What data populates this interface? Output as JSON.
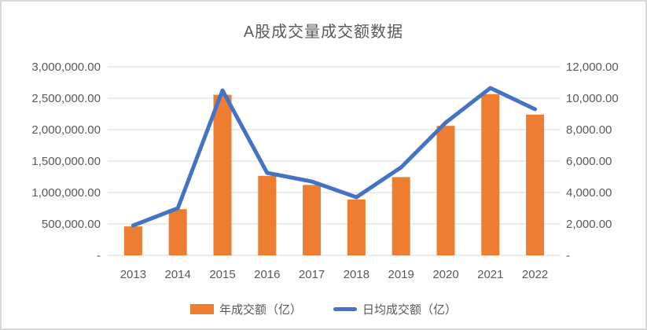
{
  "chart_data": {
    "type": "bar",
    "subtype": "combo-bar-line-dual-axis",
    "title": "A股成交量成交额数据",
    "categories": [
      "2013",
      "2014",
      "2015",
      "2016",
      "2017",
      "2018",
      "2019",
      "2020",
      "2021",
      "2022"
    ],
    "series": [
      {
        "name": "年成交额（亿）",
        "type": "bar",
        "axis": "left",
        "color": "#ED7D31",
        "values": [
          460000,
          735000,
          2555000,
          1265000,
          1120000,
          890000,
          1245000,
          2060000,
          2565000,
          2240000
        ]
      },
      {
        "name": "日均成交额（亿）",
        "type": "line",
        "axis": "right",
        "color": "#4472C4",
        "values": [
          1900,
          3000,
          10500,
          5250,
          4700,
          3700,
          5600,
          8450,
          10650,
          9300
        ]
      }
    ],
    "left_axis": {
      "min": 0,
      "max": 3000000,
      "tick_step": 500000,
      "tick_labels_top_to_bottom": [
        "3,000,000.00",
        "2,500,000.00",
        "2,000,000.00",
        "1,500,000.00",
        "1,000,000.00",
        "500,000.00",
        "-"
      ]
    },
    "right_axis": {
      "min": 0,
      "max": 12000,
      "tick_step": 2000,
      "tick_labels_top_to_bottom": [
        "12,000.00",
        "10,000.00",
        "8,000.00",
        "6,000.00",
        "4,000.00",
        "2,000.00",
        "-"
      ]
    },
    "grid": true,
    "gridline_color": "#D9D9D9",
    "axis_text_color": "#595959",
    "legend_position": "bottom"
  }
}
